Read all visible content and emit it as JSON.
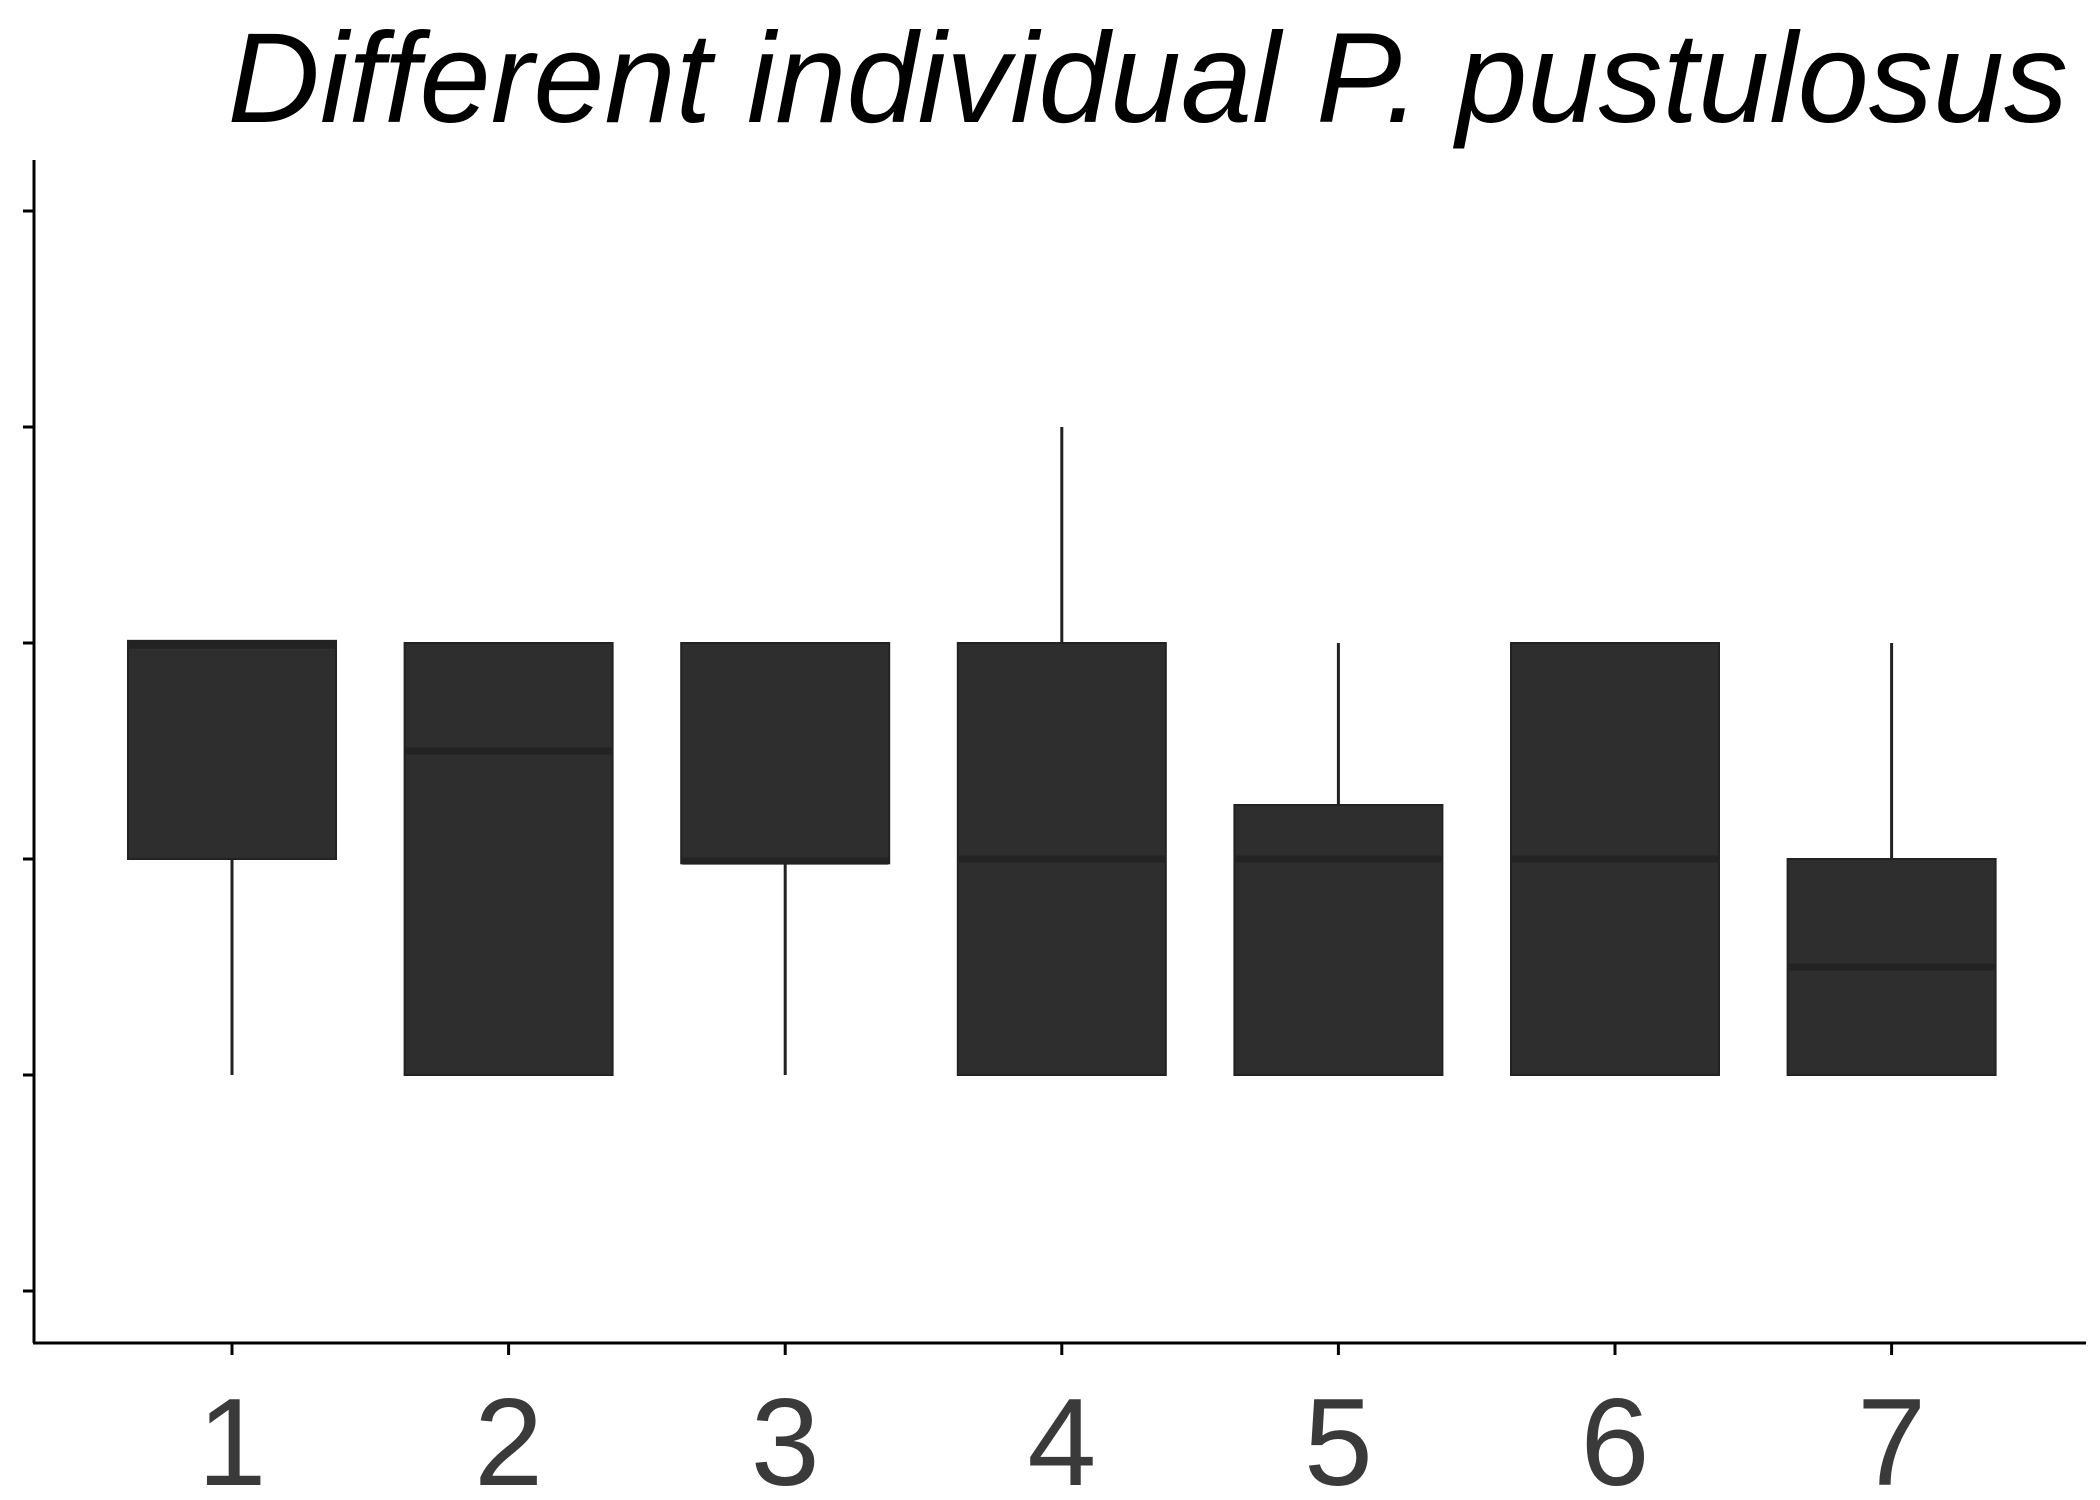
{
  "chart_data": {
    "type": "box",
    "title": "Different individual P. pustulosus",
    "xlabel": "",
    "ylabel": "",
    "categories": [
      "1",
      "2",
      "3",
      "4",
      "5",
      "6",
      "7"
    ],
    "ylim": [
      0.0,
      5.5
    ],
    "y_ticks": [
      0.25,
      1.25,
      2.25,
      3.25,
      4.25,
      5.25
    ],
    "y_tick_labels_visible": false,
    "grid": false,
    "legend": "none",
    "box_color": "#2e2e2e",
    "median_color": "#232323",
    "whisker_color": "#222222",
    "boxes": [
      {
        "category": "1",
        "whisker_low": 1.25,
        "q1": 2.25,
        "median": 3.24,
        "q3": 3.26,
        "whisker_high": 3.26
      },
      {
        "category": "2",
        "whisker_low": 1.25,
        "q1": 1.25,
        "median": 2.75,
        "q3": 3.25,
        "whisker_high": 3.25
      },
      {
        "category": "3",
        "whisker_low": 1.25,
        "q1": 2.23,
        "median": 2.24,
        "q3": 3.25,
        "whisker_high": 3.25
      },
      {
        "category": "4",
        "whisker_low": 1.25,
        "q1": 1.25,
        "median": 2.25,
        "q3": 3.25,
        "whisker_high": 4.25
      },
      {
        "category": "5",
        "whisker_low": 1.25,
        "q1": 1.25,
        "median": 2.25,
        "q3": 2.5,
        "whisker_high": 3.25
      },
      {
        "category": "6",
        "whisker_low": 1.25,
        "q1": 1.25,
        "median": 2.25,
        "q3": 3.25,
        "whisker_high": 3.25
      },
      {
        "category": "7",
        "whisker_low": 1.25,
        "q1": 1.25,
        "median": 1.75,
        "q3": 2.25,
        "whisker_high": 3.25
      }
    ]
  }
}
